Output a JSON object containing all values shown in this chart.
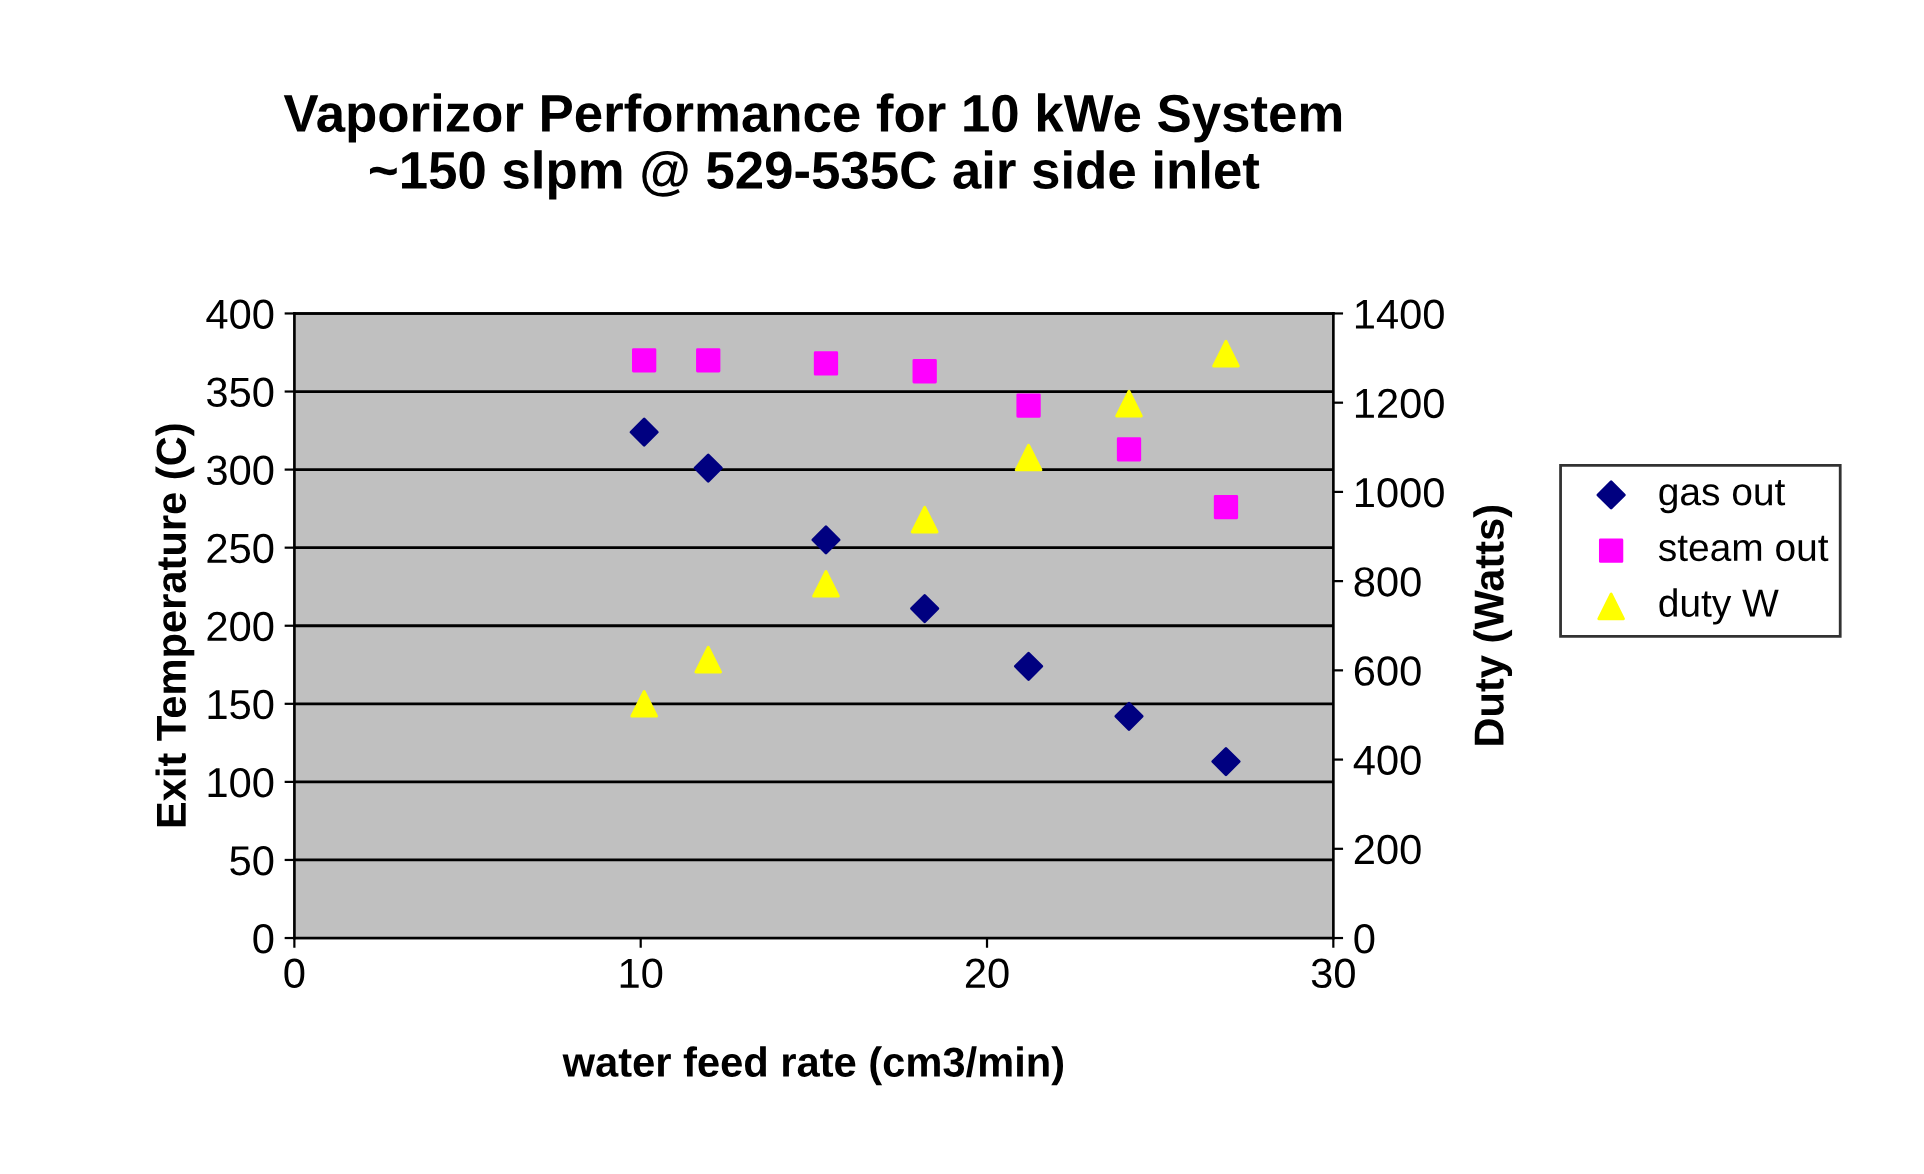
{
  "chart_data": {
    "type": "scatter",
    "title": "Vaporizor Performance for 10 kWe System\n~150 slpm @ 529-535C air side inlet",
    "xlabel": "water feed rate (cm3/min)",
    "ylabel": "Exit Temperature (C)",
    "y2label": "Duty (Watts)",
    "xlim": [
      0,
      30
    ],
    "xticks": [
      0,
      10,
      20,
      30
    ],
    "ylim": [
      0,
      400
    ],
    "yticks": [
      0,
      50,
      100,
      150,
      200,
      250,
      300,
      350,
      400
    ],
    "y2lim": [
      0,
      1400
    ],
    "y2ticks": [
      0,
      200,
      400,
      600,
      800,
      1000,
      1200,
      1400
    ],
    "grid": "y",
    "legend": "right",
    "series": [
      {
        "name": "gas out",
        "color": "#000080",
        "marker": "diamond",
        "x": [
          10.1,
          11.95,
          15.35,
          18.2,
          21.2,
          24.1,
          26.9
        ],
        "values": [
          324,
          301,
          255,
          211,
          174,
          142,
          113
        ]
      },
      {
        "name": "steam out",
        "color": "#ff00ff",
        "marker": "square",
        "x": [
          10.1,
          11.95,
          15.35,
          18.2,
          21.2,
          24.1,
          26.9
        ],
        "values": [
          370,
          370,
          368,
          363,
          341,
          313,
          276
        ]
      },
      {
        "name": "duty W",
        "color": "#ffff00",
        "marker": "triangle",
        "axis": "y2",
        "x": [
          10.1,
          11.95,
          15.35,
          18.2,
          21.2,
          24.1,
          26.9
        ],
        "values": [
          525,
          624,
          794,
          938,
          1077,
          1198,
          1310
        ]
      }
    ]
  }
}
